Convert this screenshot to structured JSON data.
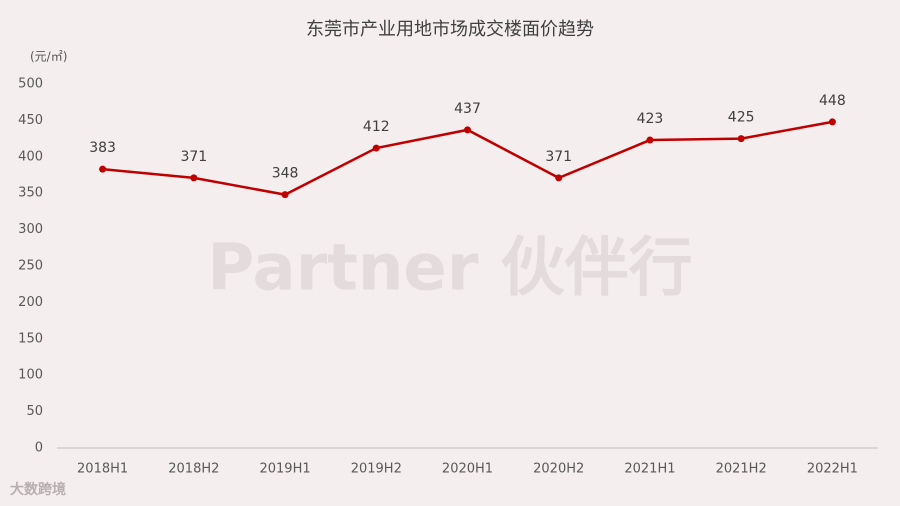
{
  "chart_data": {
    "type": "line",
    "title": "东莞市产业用地市场成交楼面价趋势",
    "y_label": "(元/㎡)",
    "categories": [
      "2018H1",
      "2018H2",
      "2019H1",
      "2019H2",
      "2020H1",
      "2020H2",
      "2021H1",
      "2021H2",
      "2022H1"
    ],
    "values": [
      383,
      371,
      348,
      412,
      437,
      371,
      423,
      425,
      448
    ],
    "color": "#c00000",
    "ylim": [
      0,
      500
    ],
    "yticks": [
      0,
      50,
      100,
      150,
      200,
      250,
      300,
      350,
      400,
      450,
      500
    ],
    "grid": false,
    "watermark": "Partner 伙伴行",
    "logo": "大数跨境"
  }
}
